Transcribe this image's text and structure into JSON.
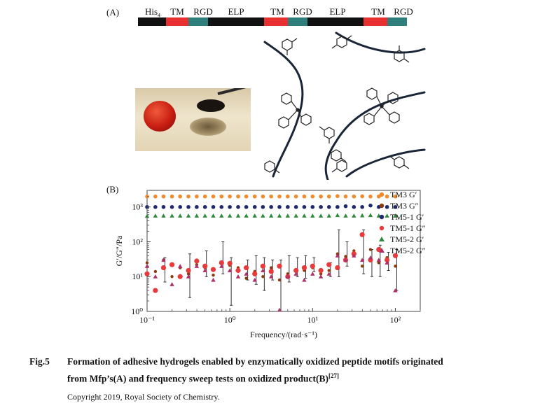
{
  "panel_a": {
    "label": "(A)",
    "segments": [
      {
        "text": "His",
        "sub": "4",
        "color": "#111111",
        "cx": 218,
        "w": 40
      },
      {
        "text": "TM",
        "color": "#e83030",
        "cx": 253,
        "w": 32
      },
      {
        "text": "RGD",
        "color": "#2e7f7c",
        "cx": 290,
        "w": 28
      },
      {
        "text": "ELP",
        "color": "#111111",
        "cx": 337,
        "w": 80
      },
      {
        "text": "TM",
        "color": "#e83030",
        "cx": 396,
        "w": 34
      },
      {
        "text": "RGD",
        "color": "#2e7f7c",
        "cx": 432,
        "w": 28
      },
      {
        "text": "ELP",
        "color": "#111111",
        "cx": 482,
        "w": 80
      },
      {
        "text": "TM",
        "color": "#e83030",
        "cx": 540,
        "w": 34
      },
      {
        "text": "RGD",
        "color": "#2e7f7c",
        "cx": 576,
        "w": 28
      }
    ]
  },
  "panel_b": {
    "label": "(B)"
  },
  "chart_data": {
    "type": "scatter",
    "xlabel": "Frequency/(rad·s⁻¹)",
    "ylabel": "G′/G″/Pa",
    "xscale": "log",
    "yscale": "log",
    "xlim": [
      0.1,
      200
    ],
    "ylim": [
      1,
      3000
    ],
    "x_ticks": [
      "10⁻¹",
      "10⁰",
      "10¹",
      "10²"
    ],
    "y_ticks": [
      "10⁰",
      "10¹",
      "10²",
      "10³"
    ],
    "legend_position": "right",
    "x": [
      0.1,
      0.126,
      0.158,
      0.2,
      0.251,
      0.316,
      0.398,
      0.501,
      0.631,
      0.794,
      1.0,
      1.26,
      1.58,
      2.0,
      2.51,
      3.16,
      3.98,
      5.01,
      6.31,
      7.94,
      10.0,
      12.6,
      15.8,
      20.0,
      25.1,
      31.6,
      39.8,
      50.1,
      63.1,
      79.4,
      100.0
    ],
    "series": [
      {
        "name": "TM3 G′",
        "marker": "circle",
        "color": "#f08a2a",
        "values": [
          2000,
          2000,
          2000,
          2000,
          2000,
          2000,
          2000,
          2000,
          2000,
          2000,
          2000,
          2000,
          2000,
          2000,
          2000,
          2000,
          2000,
          2000,
          2000,
          2000,
          2000,
          2000,
          2000,
          2050,
          2000,
          2000,
          2020,
          2000,
          2000,
          2000,
          2000
        ]
      },
      {
        "name": "TM3 G″",
        "marker": "circle",
        "color": "#8a3c10",
        "values": [
          25,
          14,
          30,
          10,
          18,
          12,
          22,
          18,
          11,
          25,
          21,
          18,
          9,
          14,
          10,
          18,
          8,
          12,
          16,
          15,
          18,
          12,
          15,
          45,
          38,
          55,
          20,
          60,
          25,
          35,
          20
        ]
      },
      {
        "name": "TM5-1 G′",
        "marker": "circle",
        "color": "#1f2a6e",
        "values": [
          1000,
          1000,
          1000,
          1000,
          1000,
          1000,
          1000,
          1000,
          1000,
          1000,
          1000,
          1000,
          1000,
          1000,
          1000,
          1000,
          1000,
          1000,
          1000,
          1000,
          1000,
          1000,
          1000,
          1000,
          1050,
          1000,
          1000,
          1100,
          1000,
          1000,
          1000
        ]
      },
      {
        "name": "TM5-1 G″",
        "marker": "circle",
        "color": "#e83a3a",
        "values": [
          12,
          4,
          18,
          22,
          10,
          15,
          28,
          20,
          16,
          25,
          24,
          15,
          18,
          12,
          20,
          14,
          20,
          10,
          15,
          18,
          20,
          15,
          22,
          18,
          30,
          45,
          160,
          30,
          60,
          30,
          40
        ]
      },
      {
        "name": "TM5-2 G′",
        "marker": "triangle",
        "color": "#2e8b3a",
        "values": [
          550,
          560,
          560,
          560,
          560,
          560,
          560,
          560,
          560,
          560,
          560,
          560,
          560,
          560,
          560,
          560,
          560,
          560,
          560,
          560,
          560,
          560,
          560,
          580,
          560,
          560,
          570,
          580,
          560,
          560,
          560
        ]
      },
      {
        "name": "TM5-2 G″",
        "marker": "triangle",
        "color": "#b0306a",
        "values": [
          20,
          10,
          30,
          6,
          20,
          10,
          20,
          15,
          8,
          20,
          15,
          10,
          12,
          8,
          15,
          10,
          1.1,
          10,
          12,
          8,
          12,
          10,
          12,
          40,
          30,
          40,
          30,
          35,
          30,
          25,
          4
        ]
      }
    ],
    "error_bars": {
      "x_index": [
        2,
        5,
        7,
        9,
        10,
        12,
        13,
        14,
        15,
        16,
        17,
        18,
        19,
        20,
        22,
        23,
        24,
        26,
        27,
        28,
        29,
        30
      ],
      "low": [
        7,
        2.5,
        10,
        12,
        1.5,
        8,
        6,
        4,
        8,
        1,
        7,
        10,
        9,
        14,
        10,
        10,
        20,
        12,
        10,
        10,
        15,
        4
      ],
      "high": [
        35,
        45,
        55,
        100,
        35,
        30,
        40,
        35,
        30,
        30,
        40,
        35,
        40,
        35,
        25,
        220,
        100,
        220,
        60,
        80,
        50,
        60
      ]
    }
  },
  "caption": {
    "fig_num": "Fig.5",
    "line1": "Formation of adhesive hydrogels enabled by enzymatically oxidized peptide motifs originated",
    "line2": "from Mfp’s(A) and frequency sweep tests on oxidized product(B)",
    "ref": "[27]",
    "copyright": "Copyright 2019, Royal Society of Chemistry."
  }
}
